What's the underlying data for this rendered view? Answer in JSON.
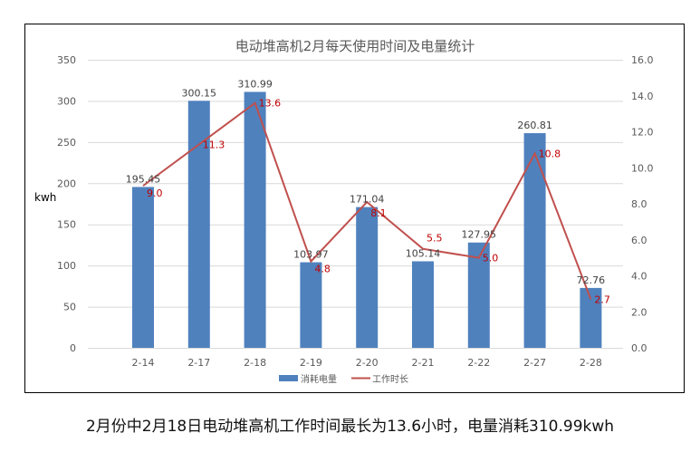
{
  "chart_data": {
    "type": "bar+line",
    "title": "电动堆高机2月每天使用时间及电量统计",
    "categories": [
      "2-14",
      "2-17",
      "2-18",
      "2-19",
      "2-20",
      "2-21",
      "2-22",
      "2-27",
      "2-28"
    ],
    "series": [
      {
        "name": "消耗电量",
        "type": "bar",
        "axis": "left",
        "color": "#4f81bd",
        "values": [
          195.45,
          300.15,
          310.99,
          103.97,
          171.04,
          105.14,
          127.95,
          260.81,
          72.76
        ],
        "labels": [
          "195.45",
          "300.15",
          "310.99",
          "103.97",
          "171.04",
          "105.14",
          "127.95",
          "260.81",
          "72.76"
        ]
      },
      {
        "name": "工作时长",
        "type": "line",
        "axis": "right",
        "color": "#c0504d",
        "values": [
          9.0,
          11.3,
          13.6,
          4.8,
          8.1,
          5.5,
          5.0,
          10.8,
          2.7
        ],
        "labels": [
          "9.0",
          "11.3",
          "13.6",
          "4.8",
          "8.1",
          "5.5",
          "5.0",
          "10.8",
          "2.7"
        ]
      }
    ],
    "ylabel": "kwh",
    "ylim": [
      0,
      350
    ],
    "yticks": [
      "0",
      "50",
      "100",
      "150",
      "200",
      "250",
      "300",
      "350"
    ],
    "y2lim": [
      0,
      16
    ],
    "y2ticks": [
      "0.0",
      "2.0",
      "4.0",
      "6.0",
      "8.0",
      "10.0",
      "12.0",
      "14.0",
      "16.0"
    ],
    "grid": true,
    "legend": "bottom"
  },
  "caption": "2月份中2月18日电动堆高机工作时间最长为13.6小时，电量消耗310.99kwh"
}
